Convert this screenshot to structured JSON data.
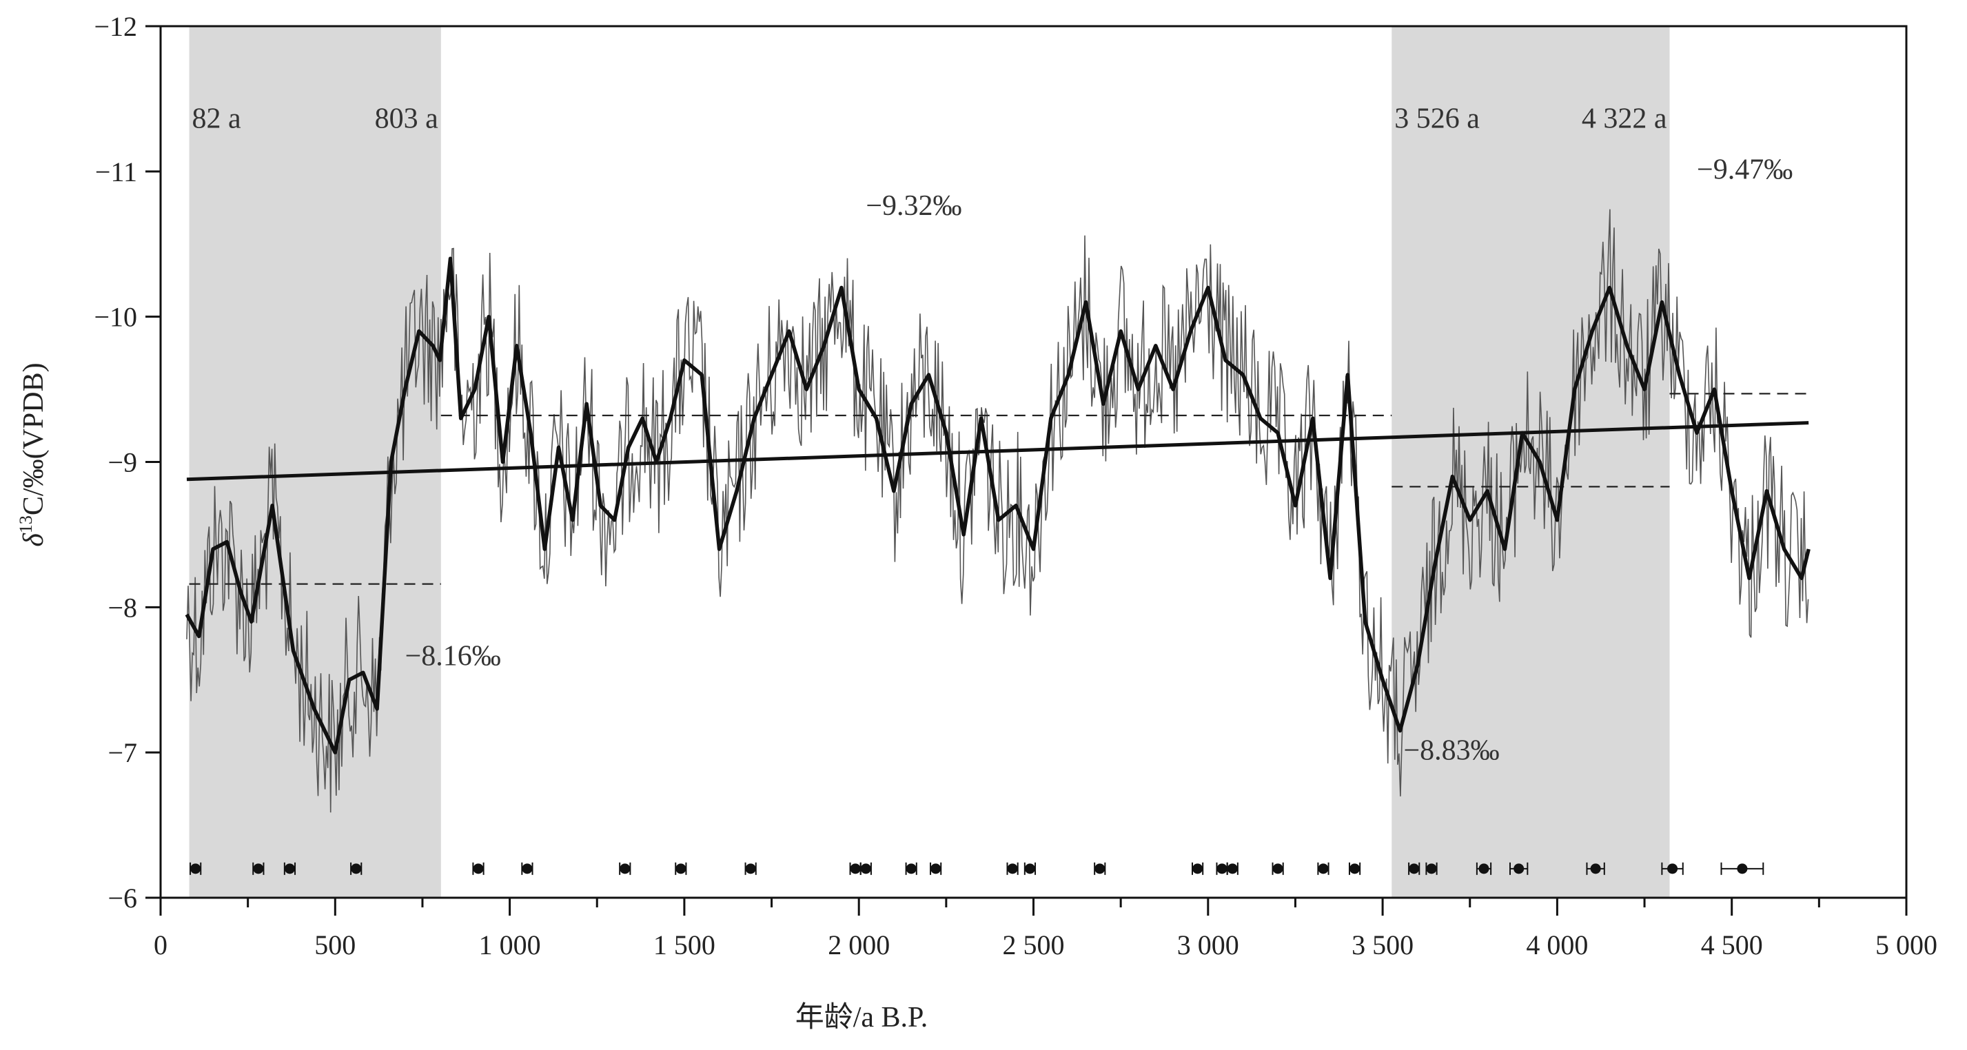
{
  "chart_data": {
    "type": "line",
    "xlabel": "年龄/a B.P.",
    "ylabel_parts": {
      "delta": "δ",
      "sup": "13",
      "rest": "C/‰(VPDB)"
    },
    "xlim": [
      0,
      5000
    ],
    "ylim": [
      -12,
      -6
    ],
    "y_inverted": true,
    "x_ticks": [
      0,
      500,
      1000,
      1500,
      2000,
      2500,
      3000,
      3500,
      4000,
      4500,
      5000
    ],
    "x_tick_labels": [
      "0",
      "500",
      "1 000",
      "1 500",
      "2 000",
      "2 500",
      "3 000",
      "3 500",
      "4 000",
      "4 500",
      "5 000"
    ],
    "y_ticks": [
      -12,
      -11,
      -10,
      -9,
      -8,
      -7,
      -6
    ],
    "y_tick_labels": [
      "−12",
      "−11",
      "−10",
      "−9",
      "−8",
      "−7",
      "−6"
    ],
    "shaded_intervals": [
      [
        82,
        803
      ],
      [
        3526,
        4322
      ]
    ],
    "interval_labels": [
      {
        "text": "82 a",
        "x": 82,
        "y": -11.3
      },
      {
        "text": "803 a",
        "x": 803,
        "y": -11.3
      },
      {
        "text": "3 526 a",
        "x": 3526,
        "y": -11.3
      },
      {
        "text": "4 322 a",
        "x": 4322,
        "y": -11.3
      }
    ],
    "mean_lines": [
      {
        "x": [
          82,
          803
        ],
        "y": -8.16,
        "label": "−8.16‰",
        "label_x": 700,
        "label_y": -7.6
      },
      {
        "x": [
          803,
          3526
        ],
        "y": -9.32,
        "label": "−9.32‰",
        "label_x": 2020,
        "label_y": -10.7
      },
      {
        "x": [
          3526,
          4322
        ],
        "y": -8.83,
        "label": "−8.83‰",
        "label_x": 3560,
        "label_y": -6.95
      },
      {
        "x": [
          4322,
          4720
        ],
        "y": -9.47,
        "label": "−9.47‰",
        "label_x": 4400,
        "label_y": -10.95
      }
    ],
    "trend_line": {
      "x": [
        75,
        4720
      ],
      "y": [
        -8.88,
        -9.27
      ]
    },
    "smooth_series": {
      "x": [
        75,
        110,
        150,
        190,
        230,
        260,
        290,
        320,
        350,
        380,
        410,
        440,
        470,
        500,
        540,
        580,
        620,
        660,
        700,
        740,
        780,
        800,
        830,
        860,
        900,
        940,
        980,
        1020,
        1060,
        1100,
        1140,
        1180,
        1220,
        1260,
        1300,
        1340,
        1380,
        1420,
        1460,
        1500,
        1550,
        1600,
        1650,
        1700,
        1750,
        1800,
        1850,
        1900,
        1950,
        2000,
        2050,
        2100,
        2150,
        2200,
        2250,
        2300,
        2350,
        2400,
        2450,
        2500,
        2550,
        2600,
        2650,
        2700,
        2750,
        2800,
        2850,
        2900,
        2950,
        3000,
        3050,
        3100,
        3150,
        3200,
        3250,
        3300,
        3350,
        3400,
        3450,
        3500,
        3550,
        3600,
        3650,
        3700,
        3750,
        3800,
        3850,
        3900,
        3950,
        4000,
        4050,
        4100,
        4150,
        4200,
        4250,
        4300,
        4350,
        4400,
        4450,
        4500,
        4550,
        4600,
        4650,
        4700,
        4720
      ],
      "y": [
        -7.95,
        -7.8,
        -8.4,
        -8.45,
        -8.1,
        -7.9,
        -8.3,
        -8.7,
        -8.2,
        -7.7,
        -7.5,
        -7.3,
        -7.15,
        -7.0,
        -7.5,
        -7.55,
        -7.3,
        -9.0,
        -9.5,
        -9.9,
        -9.8,
        -9.7,
        -10.4,
        -9.3,
        -9.5,
        -10.0,
        -9.0,
        -9.8,
        -9.2,
        -8.4,
        -9.1,
        -8.6,
        -9.4,
        -8.7,
        -8.6,
        -9.1,
        -9.3,
        -9.0,
        -9.3,
        -9.7,
        -9.6,
        -8.4,
        -8.8,
        -9.3,
        -9.6,
        -9.9,
        -9.5,
        -9.8,
        -10.2,
        -9.5,
        -9.3,
        -8.8,
        -9.4,
        -9.6,
        -9.2,
        -8.5,
        -9.3,
        -8.6,
        -8.7,
        -8.4,
        -9.3,
        -9.6,
        -10.1,
        -9.4,
        -9.9,
        -9.5,
        -9.8,
        -9.5,
        -9.9,
        -10.2,
        -9.7,
        -9.6,
        -9.3,
        -9.2,
        -8.7,
        -9.3,
        -8.2,
        -9.6,
        -7.9,
        -7.5,
        -7.15,
        -7.6,
        -8.3,
        -8.9,
        -8.6,
        -8.8,
        -8.4,
        -9.2,
        -9.0,
        -8.6,
        -9.5,
        -9.9,
        -10.2,
        -9.8,
        -9.5,
        -10.1,
        -9.6,
        -9.2,
        -9.5,
        -8.8,
        -8.2,
        -8.8,
        -8.4,
        -8.2,
        -8.4
      ]
    },
    "dating_points": [
      100,
      280,
      370,
      560,
      910,
      1050,
      1330,
      1490,
      1690,
      1990,
      2020,
      2150,
      2220,
      2440,
      2490,
      2690,
      2970,
      3040,
      3070,
      3200,
      3330,
      3420,
      3590,
      3640,
      3790,
      3890,
      4110,
      4330,
      4530
    ],
    "dating_points_y": -6.2,
    "dating_errors": [
      15,
      15,
      15,
      15,
      15,
      15,
      15,
      15,
      15,
      15,
      15,
      15,
      15,
      15,
      15,
      15,
      15,
      15,
      15,
      15,
      15,
      15,
      15,
      15,
      20,
      25,
      25,
      30,
      60
    ]
  }
}
